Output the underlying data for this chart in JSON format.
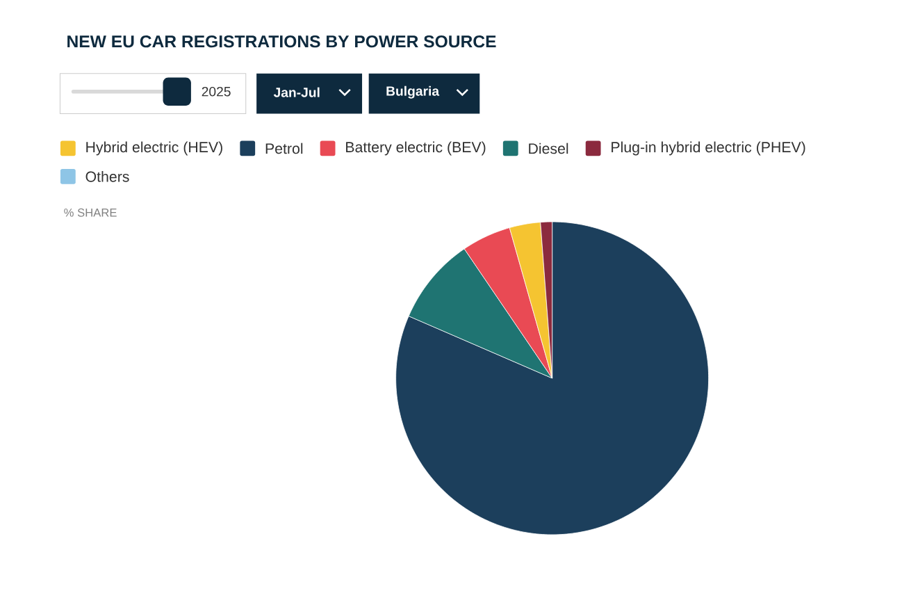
{
  "chart_data": {
    "type": "pie",
    "title": "NEW EU CAR REGISTRATIONS BY POWER SOURCE",
    "subtitle": "% SHARE",
    "annotations": [
      "2025",
      "Jan-Jul",
      "Bulgaria"
    ],
    "categories": [
      "Hybrid electric (HEV)",
      "Petrol",
      "Battery electric (BEV)",
      "Diesel",
      "Plug-in hybrid electric (PHEV)",
      "Others"
    ],
    "values": [
      3.2,
      81.5,
      5.1,
      9.0,
      1.2,
      0
    ],
    "colors": [
      "#f5c431",
      "#1c3f5c",
      "#e94a54",
      "#1f7472",
      "#8b2a3e",
      "#8ec5e6"
    ],
    "legend": "top"
  }
}
